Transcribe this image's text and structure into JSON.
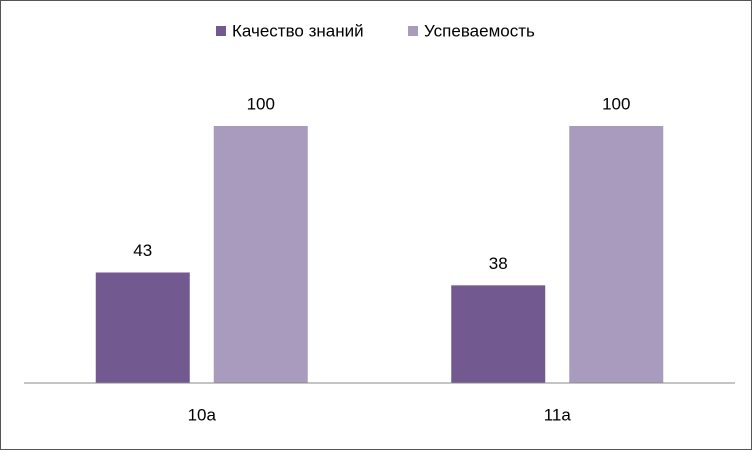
{
  "chart_data": {
    "type": "bar",
    "categories": [
      "10а",
      "11а"
    ],
    "series": [
      {
        "name": "Качество знаний",
        "color": "#725990",
        "values": [
          43,
          38
        ]
      },
      {
        "name": "Успеваемость",
        "color": "#a99bbd",
        "values": [
          100,
          100
        ]
      }
    ],
    "ylim": [
      0,
      100
    ],
    "legend": "top"
  }
}
